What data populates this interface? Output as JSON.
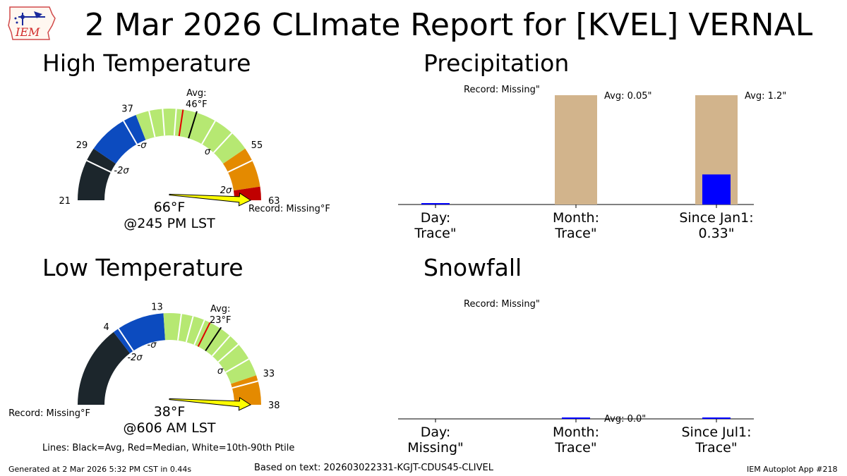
{
  "title": "2 Mar 2026 CLImate Report for [KVEL] VERNAL",
  "logo_text": "IEM",
  "footer": {
    "generated": "Generated at 2 Mar 2026 5:32 PM CST in 0.44s",
    "based_on": "Based on text: 202603022331-KGJT-CDUS45-CLIVEL",
    "app": "IEM Autoplot App #218"
  },
  "legend_note": "Lines: Black=Avg, Red=Median, White=10th-90th Ptile",
  "colors": {
    "below_2sigma": "#1c262c",
    "minus_2sigma": "#0c4bbf",
    "normal": "#b6e872",
    "plus_sigma": "#e48a00",
    "plus_2sigma": "#c00000",
    "arrow": "#ffff00",
    "precip_avg_bar": "#d2b48c",
    "precip_obs_bar": "#0000ff"
  },
  "chart_data": [
    {
      "type": "gauge",
      "title": "High Temperature",
      "range": [
        21,
        63
      ],
      "tick_labels": [
        "21",
        "29",
        "37",
        "55",
        "63"
      ],
      "tick_values": [
        21,
        29,
        37,
        55,
        63
      ],
      "sigma_labels": [
        "-2σ",
        "-σ",
        "σ",
        "2σ"
      ],
      "avg_label": "Avg:",
      "avg_value_label": "46°F",
      "avg": 46,
      "median": 44,
      "percentile_lines": [
        27,
        35,
        39,
        41,
        43,
        49,
        52,
        57
      ],
      "observed": 66,
      "observed_label": "66°F",
      "time_label": "@245 PM LST",
      "record_label": "Record: Missing°F"
    },
    {
      "type": "bar",
      "title": "Precipitation",
      "categories": [
        "Day:\nTrace\"",
        "Month:\nTrace\"",
        "Since Jan1:\n0.33\""
      ],
      "category_lines": [
        [
          "Day:",
          "Trace\""
        ],
        [
          "Month:",
          "Trace\""
        ],
        [
          "Since Jan1:",
          "0.33\""
        ]
      ],
      "series": [
        {
          "name": "Average",
          "values": [
            0.0,
            0.05,
            1.2
          ]
        },
        {
          "name": "Observed",
          "values": [
            0.001,
            0.0,
            0.33
          ]
        }
      ],
      "avg_labels": [
        "",
        "Avg: 0.05\"",
        "Avg: 1.2\""
      ],
      "record_label": "Record: Missing\"",
      "norm_max": [
        1.0,
        0.05,
        1.2
      ]
    },
    {
      "type": "gauge",
      "title": "Low Temperature",
      "range": [
        -10,
        38
      ],
      "tick_labels": [
        "4",
        "13",
        "33",
        "38"
      ],
      "tick_values": [
        4,
        13,
        33,
        38
      ],
      "sigma_labels": [
        "-2σ",
        "-σ",
        "σ"
      ],
      "avg_label": "Avg:",
      "avg_value_label": "23°F",
      "avg": 23,
      "median": 21,
      "percentile_lines": [
        5,
        16,
        18,
        20,
        25,
        27,
        30,
        34
      ],
      "observed": 38,
      "observed_label": "38°F",
      "time_label": "@606 AM LST",
      "record_label": "Record: Missing°F"
    },
    {
      "type": "bar",
      "title": "Snowfall",
      "categories": [
        "Day:\nMissing\"",
        "Month:\nTrace\"",
        "Since Jul1:\nTrace\""
      ],
      "category_lines": [
        [
          "Day:",
          "Missing\""
        ],
        [
          "Month:",
          "Trace\""
        ],
        [
          "Since Jul1:",
          "Trace\""
        ]
      ],
      "series": [
        {
          "name": "Average",
          "values": [
            0.0,
            0.0,
            0.0
          ]
        },
        {
          "name": "Observed",
          "values": [
            0.0,
            0.001,
            0.001
          ]
        }
      ],
      "avg_labels": [
        "",
        "Avg: 0.0\"",
        ""
      ],
      "record_label": "Record: Missing\""
    }
  ]
}
